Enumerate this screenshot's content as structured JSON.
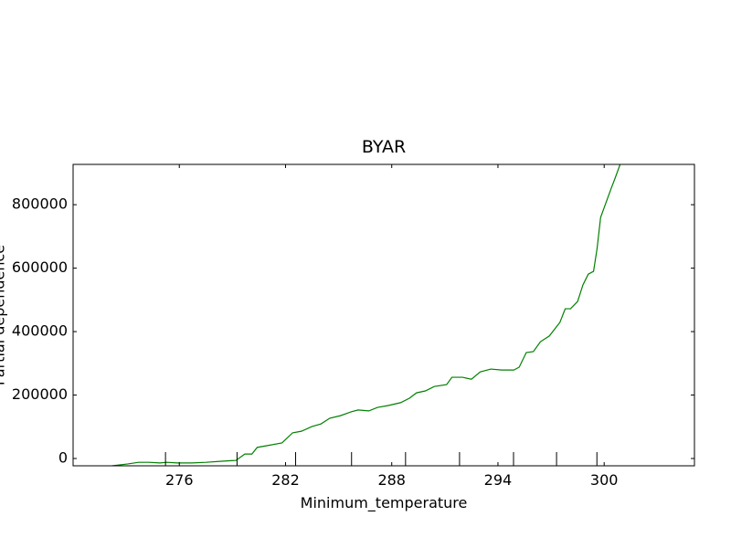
{
  "chart_data": {
    "type": "line",
    "title": "BYAR",
    "xlabel": "Minimum_temperature",
    "ylabel": "Partial dependence",
    "x": [
      272.2,
      273.1,
      273.7,
      274.3,
      274.9,
      275.3,
      275.9,
      276.7,
      277.5,
      278.3,
      279.2,
      279.7,
      280.1,
      280.4,
      280.9,
      281.8,
      282.4,
      282.9,
      283.5,
      284.0,
      284.5,
      285.1,
      285.7,
      286.1,
      286.7,
      287.2,
      287.8,
      288.5,
      289.0,
      289.4,
      289.9,
      290.4,
      291.1,
      291.4,
      292.0,
      292.5,
      293.0,
      293.6,
      294.2,
      294.9,
      295.2,
      295.6,
      296.0,
      296.4,
      296.9,
      297.5,
      297.8,
      298.1,
      298.5,
      298.8,
      299.1,
      299.4,
      299.6,
      299.8,
      300.4,
      300.6,
      300.9
    ],
    "series": [
      {
        "name": "Partial dependence",
        "color": "#008000",
        "values": [
          -23000,
          -17000,
          -12000,
          -12000,
          -14000,
          -12000,
          -14000,
          -14000,
          -12000,
          -9000,
          -6000,
          14000,
          14000,
          35000,
          40000,
          49000,
          81000,
          86000,
          101000,
          109000,
          127000,
          135000,
          147000,
          153000,
          150000,
          161000,
          167000,
          176000,
          190000,
          207000,
          213000,
          227000,
          233000,
          256000,
          256000,
          250000,
          273000,
          282000,
          279000,
          279000,
          288000,
          334000,
          337000,
          368000,
          386000,
          429000,
          472000,
          472000,
          495000,
          547000,
          581000,
          590000,
          662000,
          760000,
          852000,
          881000,
          927000
        ]
      }
    ],
    "deciles": [
      275.22,
      279.26,
      282.57,
      285.73,
      288.78,
      291.83,
      294.88,
      297.31,
      299.59
    ],
    "xlim": [
      270,
      305.1
    ],
    "ylim": [
      -23000,
      927000
    ],
    "xticks": [
      276,
      282,
      288,
      294,
      300
    ],
    "yticks": [
      0,
      200000,
      400000,
      600000,
      800000
    ]
  }
}
